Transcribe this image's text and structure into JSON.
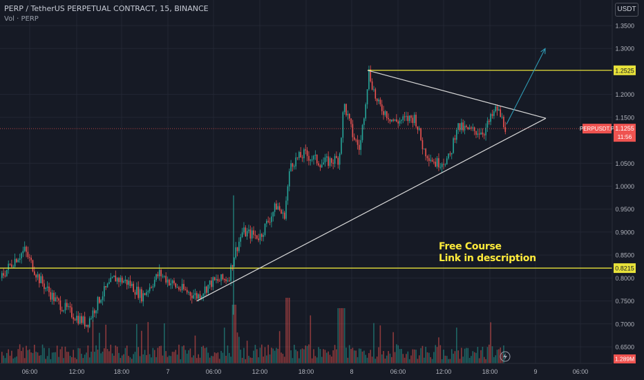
{
  "header": {
    "title": "PERP / TetherUS PERPETUAL CONTRACT, 15, BINANCE",
    "volume_label": "Vol · PERP",
    "unit": "USDT"
  },
  "annotation": {
    "line1": "Free Course",
    "line2": "Link in description"
  },
  "colors": {
    "background": "#161a25",
    "up": "#26a69a",
    "down": "#ef5350",
    "level": "#e8e23a",
    "triangle": "#d9d9d9",
    "arrow": "#2f9bb5",
    "price_line": "#ef5350"
  },
  "chart_data": {
    "type": "candlestick",
    "symbol": "PERP / TetherUS PERPETUAL CONTRACT",
    "interval": "15",
    "exchange": "BINANCE",
    "ylim": [
      0.62,
      1.38
    ],
    "y_ticks": [
      "1.3500",
      "1.3000",
      "1.2000",
      "1.1500",
      "1.0500",
      "1.0000",
      "0.9500",
      "0.9000",
      "0.8500",
      "0.8000",
      "0.7500",
      "0.7000",
      "0.6500"
    ],
    "x_ticks": [
      "06:00",
      "12:00",
      "18:00",
      "7",
      "06:00",
      "12:00",
      "18:00",
      "8",
      "06:00",
      "12:00",
      "18:00",
      "9",
      "06:00"
    ],
    "levels": [
      {
        "label": "1.2525",
        "value": 1.2525
      },
      {
        "label": "0.8215",
        "value": 0.8215
      }
    ],
    "current_price": {
      "symbol": "PERPUSDT.P",
      "value": "1.1255",
      "countdown": "11:56",
      "numeric": 1.1255
    },
    "volume_tag": "1.289M",
    "price_path": [
      [
        0,
        0.8
      ],
      [
        20,
        0.84
      ],
      [
        35,
        0.86
      ],
      [
        55,
        0.8
      ],
      [
        80,
        0.75
      ],
      [
        105,
        0.72
      ],
      [
        125,
        0.7
      ],
      [
        145,
        0.76
      ],
      [
        165,
        0.8
      ],
      [
        185,
        0.79
      ],
      [
        205,
        0.76
      ],
      [
        230,
        0.81
      ],
      [
        255,
        0.78
      ],
      [
        285,
        0.76
      ],
      [
        305,
        0.79
      ],
      [
        330,
        0.8
      ],
      [
        338,
        0.85
      ],
      [
        350,
        0.9
      ],
      [
        375,
        0.89
      ],
      [
        400,
        0.96
      ],
      [
        410,
        0.93
      ],
      [
        420,
        1.05
      ],
      [
        440,
        1.07
      ],
      [
        465,
        1.05
      ],
      [
        490,
        1.06
      ],
      [
        497,
        1.18
      ],
      [
        510,
        1.11
      ],
      [
        520,
        1.08
      ],
      [
        533,
        1.25
      ],
      [
        545,
        1.18
      ],
      [
        570,
        1.14
      ],
      [
        600,
        1.15
      ],
      [
        612,
        1.08
      ],
      [
        630,
        1.05
      ],
      [
        650,
        1.06
      ],
      [
        660,
        1.13
      ],
      [
        680,
        1.12
      ],
      [
        700,
        1.12
      ],
      [
        718,
        1.17
      ],
      [
        732,
        1.1255
      ]
    ],
    "triangle": [
      {
        "from": [
          285,
          0.75
        ],
        "to": [
          790,
          1.148
        ]
      },
      {
        "from": [
          532,
          1.2525
        ],
        "to": [
          790,
          1.148
        ]
      }
    ],
    "projection_arrow": {
      "from": [
        733,
        1.135
      ],
      "to": [
        789,
        1.3
      ]
    }
  }
}
